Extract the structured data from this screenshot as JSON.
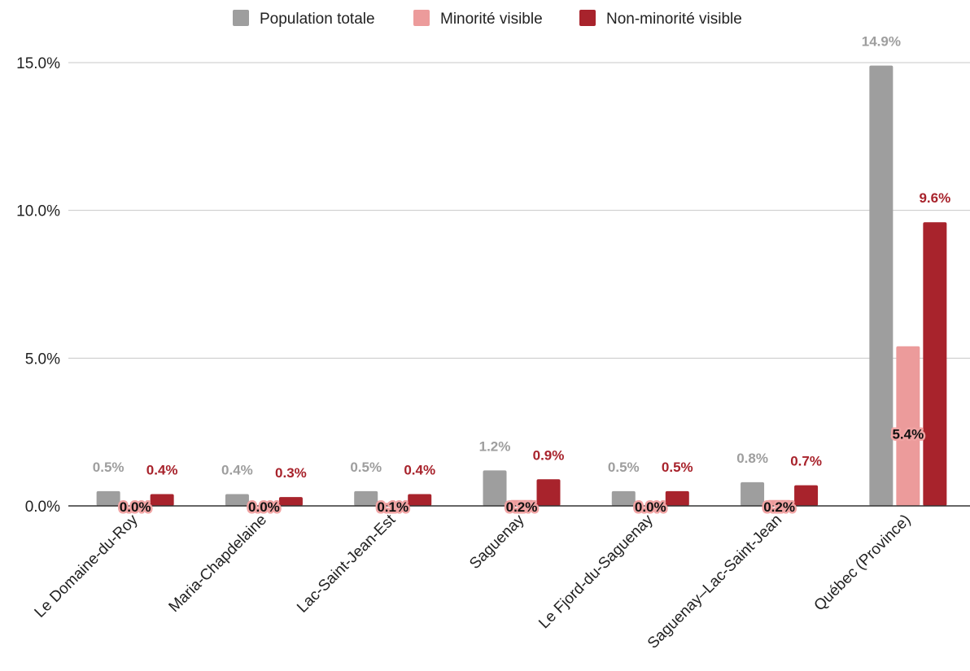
{
  "chart_data": {
    "type": "bar",
    "title": "",
    "xlabel": "",
    "ylabel": "",
    "ylim": [
      0,
      15
    ],
    "y_ticks": [
      0,
      5,
      10,
      15
    ],
    "y_tick_labels": [
      "0.0%",
      "5.0%",
      "10.0%",
      "15.0%"
    ],
    "grid": true,
    "legend_position": "top",
    "categories": [
      "Le Domaine-du-Roy",
      "Maria-Chapdelaine",
      "Lac-Saint-Jean-Est",
      "Saguenay",
      "Le Fjord-du-Saguenay",
      "Saguenay–Lac-Saint-Jean",
      "Québec (Province)"
    ],
    "series": [
      {
        "name": "Population totale",
        "color": "#9e9e9e",
        "values": [
          0.5,
          0.4,
          0.5,
          1.2,
          0.5,
          0.8,
          14.9
        ],
        "labels": [
          "0.5%",
          "0.4%",
          "0.5%",
          "1.2%",
          "0.5%",
          "0.8%",
          "14.9%"
        ]
      },
      {
        "name": "Minorité visible",
        "color": "#ec9b9b",
        "values": [
          0.0,
          0.0,
          0.1,
          0.2,
          0.0,
          0.2,
          5.4
        ],
        "labels": [
          "0.0%",
          "0.0%",
          "0.1%",
          "0.2%",
          "0.0%",
          "0.2%",
          "5.4%"
        ]
      },
      {
        "name": "Non-minorité visible",
        "color": "#a8232c",
        "values": [
          0.4,
          0.3,
          0.4,
          0.9,
          0.5,
          0.7,
          9.6
        ],
        "labels": [
          "0.4%",
          "0.3%",
          "0.4%",
          "0.9%",
          "0.5%",
          "0.7%",
          "9.6%"
        ]
      }
    ]
  }
}
